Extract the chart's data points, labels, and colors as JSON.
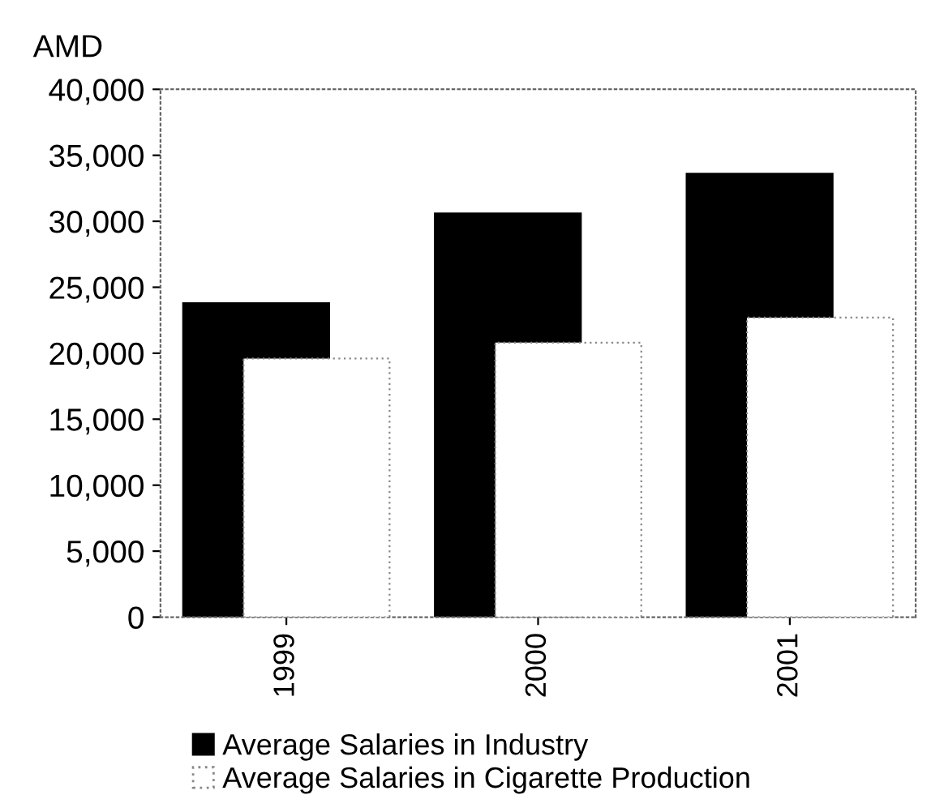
{
  "chart_data": {
    "type": "bar",
    "ylabel": "AMD",
    "categories": [
      "1999",
      "2000",
      "2001"
    ],
    "series": [
      {
        "name": "Average Salaries in Industry",
        "color": "#000000",
        "values": [
          23800,
          30600,
          33600
        ]
      },
      {
        "name": "Average Salaries in Cigarette Production",
        "color": "#ffffff",
        "values": [
          19600,
          20800,
          22700
        ]
      }
    ],
    "ylim": [
      0,
      40000
    ],
    "yticks": [
      {
        "value": 0,
        "label": "0"
      },
      {
        "value": 5000,
        "label": "5,000"
      },
      {
        "value": 10000,
        "label": "10,000"
      },
      {
        "value": 15000,
        "label": "15,000"
      },
      {
        "value": 20000,
        "label": "20,000"
      },
      {
        "value": 25000,
        "label": "25,000"
      },
      {
        "value": 30000,
        "label": "30,000"
      },
      {
        "value": 35000,
        "label": "35,000"
      },
      {
        "value": 40000,
        "label": "40,000"
      }
    ],
    "grid": false,
    "legend": "bottom"
  }
}
